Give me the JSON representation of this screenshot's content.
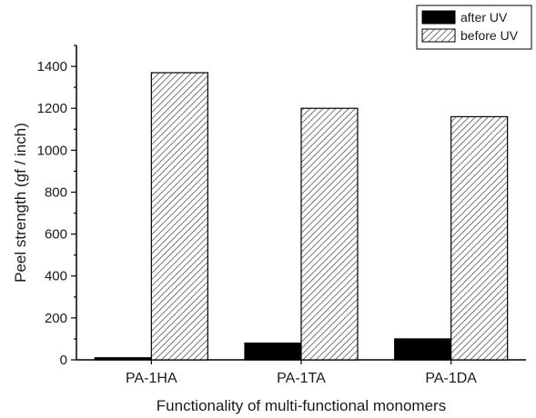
{
  "chart_data": {
    "type": "bar",
    "title": "",
    "xlabel": "Functionality of multi-functional monomers",
    "ylabel": "Peel strength (gf / inch)",
    "categories": [
      "PA-1HA",
      "PA-1TA",
      "PA-1DA"
    ],
    "series": [
      {
        "name": "after UV",
        "values": [
          10,
          80,
          100
        ],
        "color": "#000000",
        "pattern": "solid"
      },
      {
        "name": "before UV",
        "values": [
          1370,
          1200,
          1160
        ],
        "color": "#888888",
        "pattern": "diagonal-hatch"
      }
    ],
    "ylim": [
      0,
      1500
    ],
    "yticks": [
      0,
      200,
      400,
      600,
      800,
      1000,
      1200,
      1400
    ],
    "grid": false,
    "legend": "top-right"
  }
}
